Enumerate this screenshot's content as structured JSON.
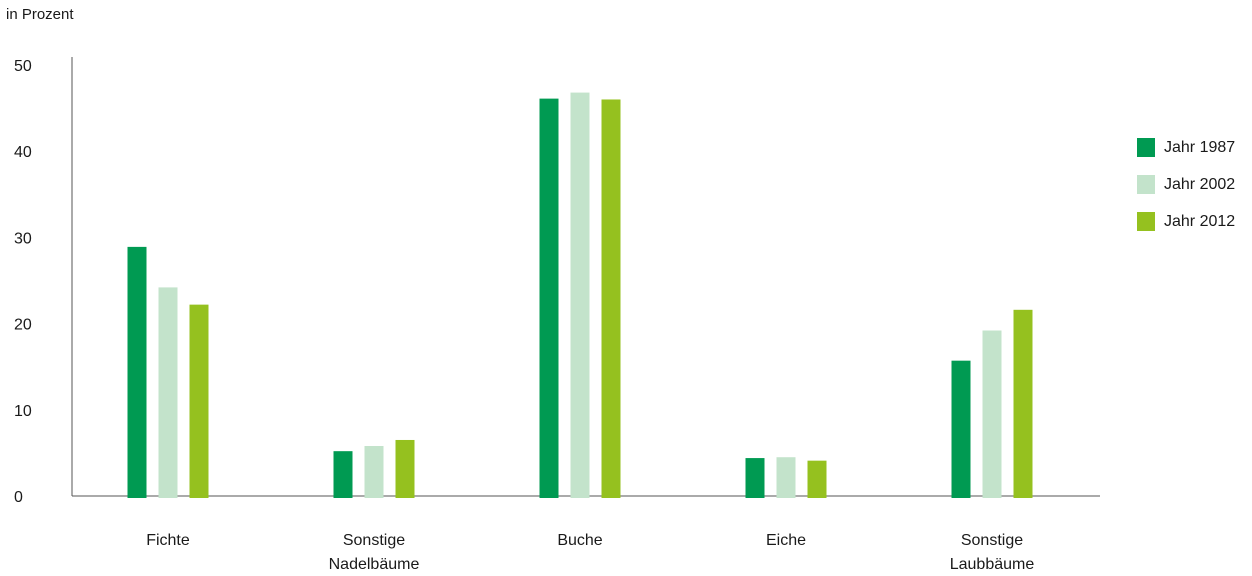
{
  "chart_data": {
    "type": "bar",
    "ylabel": "in Prozent",
    "ylim": [
      0,
      50
    ],
    "yticks": [
      0,
      10,
      20,
      30,
      40,
      50
    ],
    "categories": [
      [
        "Fichte"
      ],
      [
        "Sonstige",
        "Nadelbäume"
      ],
      [
        "Buche"
      ],
      [
        "Eiche"
      ],
      [
        "Sonstige",
        "Laubbäume"
      ]
    ],
    "series": [
      {
        "name": "Jahr 1987",
        "color": "#009a52",
        "values": [
          28.9,
          5.2,
          46.1,
          4.4,
          15.7
        ]
      },
      {
        "name": "Jahr 2002",
        "color": "#c3e3cb",
        "values": [
          24.2,
          5.8,
          46.8,
          4.5,
          19.2
        ]
      },
      {
        "name": "Jahr 2012",
        "color": "#95c11f",
        "values": [
          22.2,
          6.5,
          46.0,
          4.1,
          21.6
        ]
      }
    ],
    "legend_position": "right"
  }
}
